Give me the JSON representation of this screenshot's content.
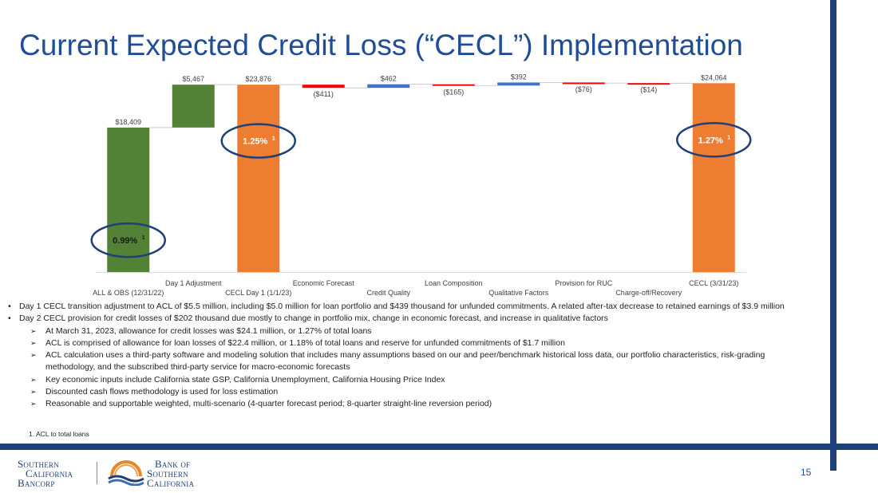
{
  "page": {
    "title": "Current Expected Credit Loss (“CECL”) Implementation",
    "page_number": "15",
    "footnote": "1.  ACL to total loans"
  },
  "colors": {
    "title": "#1f4e96",
    "frame": "#1f3f7a",
    "green": "#538135",
    "orange": "#ed7d31",
    "red": "#ff0000",
    "blue": "#4472c4",
    "ellipse": "#1f3f7a"
  },
  "chart_data": {
    "type": "waterfall",
    "ylim": [
      0,
      24500
    ],
    "categories": [
      "ALL & OBS (12/31/22)",
      "Day 1 Adjustment",
      "CECL Day 1 (1/1/23)",
      "Economic Forecast",
      "Credit Quality",
      "Loan Composition",
      "Qualitative Factors",
      "Provision for RUC",
      "Charge-off/Recovery",
      "CECL (3/31/23)"
    ],
    "values": [
      18409,
      5467,
      23876,
      -411,
      462,
      -165,
      392,
      -76,
      -14,
      24064
    ],
    "kinds": [
      "total",
      "delta",
      "total",
      "delta",
      "delta",
      "delta",
      "delta",
      "delta",
      "delta",
      "total"
    ],
    "value_labels": [
      "$18,409",
      "$5,467",
      "$23,876",
      "($411)",
      "$462",
      "($165)",
      "$392",
      "($76)",
      "($14)",
      "$24,064"
    ],
    "callouts": [
      {
        "bar_index": 0,
        "text": "0.99%",
        "sup": "1"
      },
      {
        "bar_index": 2,
        "text": "1.25%",
        "sup": "1"
      },
      {
        "bar_index": 9,
        "text": "1.27%",
        "sup": "1"
      }
    ]
  },
  "bullets": [
    {
      "text": "Day 1 CECL transition adjustment to ACL of $5.5 million, including $5.0 million for loan portfolio and $439 thousand for unfunded commitments.  A related after-tax decrease to retained earnings of $3.9 million",
      "subs": []
    },
    {
      "text": "Day 2 CECL provision for credit losses of $202 thousand due mostly to change in portfolio mix, change in economic forecast, and increase in qualitative factors",
      "subs": [
        "At March 31, 2023, allowance for credit losses was $24.1 million, or 1.27% of total loans",
        "ACL is comprised of allowance for loan losses of $22.4 million, or 1.18% of total loans and reserve for unfunded commitments of $1.7 million",
        "ACL calculation uses a third-party software and modeling solution that includes many assumptions based on our and peer/benchmark historical loss data, our portfolio characteristics, risk-grading methodology, and the subscribed third-party service for macro-economic forecasts",
        "Key economic inputs include California state GSP, California Unemployment, California Housing Price Index",
        "Discounted cash flows methodology is used for loss estimation",
        "Reasonable and supportable weighted, multi-scenario (4-quarter forecast period; 8-quarter straight-line reversion period)"
      ]
    }
  ],
  "logos": {
    "left_lines": [
      "Southern",
      "California",
      "Bancorp"
    ],
    "right_lines": [
      "Bank of",
      "Southern",
      "California"
    ]
  }
}
